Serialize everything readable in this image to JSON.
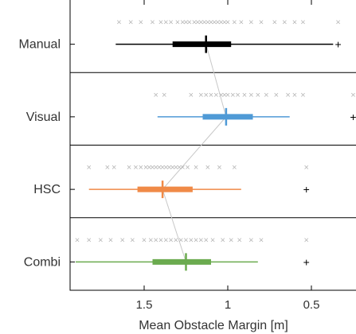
{
  "chart_data": {
    "type": "boxplot",
    "orientation": "horizontal",
    "xlabel": "Mean Obstacle Margin [m]",
    "ylabel": "",
    "x_reversed": true,
    "xlim": [
      2.0,
      0.25
    ],
    "xticks": [
      1.5,
      1,
      0.5
    ],
    "xtick_labels": [
      "1.5",
      "1",
      "0.5"
    ],
    "categories": [
      "Manual",
      "Visual",
      "HSC",
      "Combi"
    ],
    "grid": false,
    "median_connector": true,
    "series": [
      {
        "name": "Manual",
        "color": "#000000",
        "whisker_low": 0.37,
        "q1": 0.98,
        "median": 1.13,
        "q3": 1.33,
        "whisker_high": 1.67,
        "outliers": [
          0.34
        ],
        "samples": [
          1.65,
          1.58,
          1.52,
          1.45,
          1.4,
          1.37,
          1.34,
          1.3,
          1.27,
          1.25,
          1.23,
          1.2,
          1.18,
          1.16,
          1.14,
          1.12,
          1.1,
          1.08,
          1.06,
          1.04,
          1.02,
          1.0,
          0.96,
          0.92,
          0.86,
          0.8,
          0.72,
          0.66,
          0.6,
          0.55,
          0.34
        ]
      },
      {
        "name": "Visual",
        "color": "#4f9ad6",
        "whisker_low": 0.63,
        "q1": 0.85,
        "median": 1.01,
        "q3": 1.15,
        "whisker_high": 1.42,
        "outliers": [
          0.25
        ],
        "samples": [
          1.43,
          1.38,
          1.22,
          1.16,
          1.13,
          1.1,
          1.07,
          1.04,
          1.02,
          1.0,
          0.97,
          0.94,
          0.9,
          0.86,
          0.82,
          0.77,
          0.71,
          0.64,
          0.6,
          0.55,
          0.25
        ]
      },
      {
        "name": "HSC",
        "color": "#f08a47",
        "whisker_low": 0.92,
        "q1": 1.21,
        "median": 1.39,
        "q3": 1.54,
        "whisker_high": 1.83,
        "outliers": [
          0.53
        ],
        "samples": [
          1.83,
          1.72,
          1.68,
          1.59,
          1.55,
          1.52,
          1.49,
          1.47,
          1.45,
          1.43,
          1.41,
          1.39,
          1.37,
          1.35,
          1.33,
          1.31,
          1.29,
          1.27,
          1.24,
          1.19,
          1.12,
          1.05,
          0.96,
          0.53
        ]
      },
      {
        "name": "Combi",
        "color": "#6bab4f",
        "whisker_low": 0.82,
        "q1": 1.1,
        "median": 1.25,
        "q3": 1.45,
        "whisker_high": 1.91,
        "outliers": [
          0.53
        ],
        "samples": [
          1.9,
          1.83,
          1.76,
          1.7,
          1.63,
          1.57,
          1.5,
          1.46,
          1.43,
          1.4,
          1.37,
          1.34,
          1.31,
          1.28,
          1.25,
          1.22,
          1.19,
          1.16,
          1.13,
          1.09,
          1.03,
          0.98,
          0.93,
          0.86,
          0.8,
          0.53
        ]
      }
    ]
  }
}
